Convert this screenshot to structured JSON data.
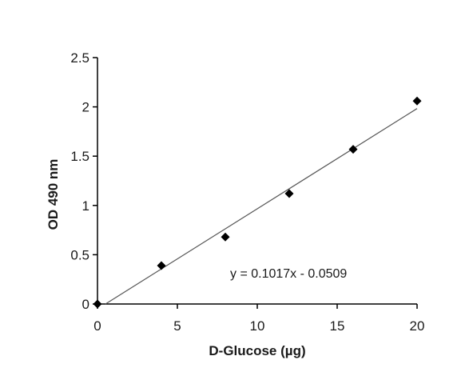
{
  "chart_data": {
    "type": "scatter",
    "title": "",
    "xlabel": "D-Glucose (µg)",
    "ylabel": "OD 490 nm",
    "xlim": [
      0,
      20
    ],
    "ylim": [
      0,
      2.5
    ],
    "xticks": [
      "0",
      "5",
      "10",
      "15",
      "20"
    ],
    "yticks": [
      "0",
      "0.5",
      "1",
      "1.5",
      "2",
      "2.5"
    ],
    "grid": false,
    "legend": "none",
    "series": [
      {
        "marker": "diamond",
        "color": "#000000",
        "points": [
          {
            "x": 0,
            "y": 0
          },
          {
            "x": 4,
            "y": 0.39
          },
          {
            "x": 8,
            "y": 0.68
          },
          {
            "x": 12,
            "y": 1.12
          },
          {
            "x": 16,
            "y": 1.57
          },
          {
            "x": 20,
            "y": 2.06
          }
        ]
      }
    ],
    "trendline": {
      "slope": 0.1017,
      "intercept": -0.0509,
      "equation": "y = 0.1017x - 0.0509",
      "color": "#555555"
    }
  }
}
